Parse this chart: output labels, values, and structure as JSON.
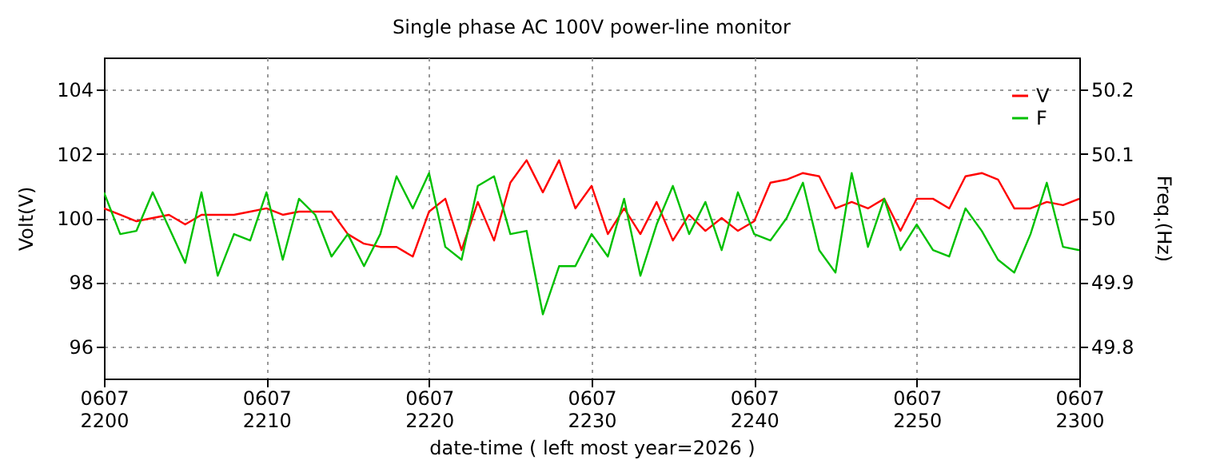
{
  "chart_data": {
    "type": "line",
    "title": "Single phase AC 100V power-line monitor",
    "xlabel": "date-time ( left most year=2026 )",
    "ylabel": "Volt(V)",
    "y2label": "Freq.(Hz)",
    "x": [
      "2026-06-07T22:00",
      "2026-06-07T22:01",
      "2026-06-07T22:02",
      "2026-06-07T22:03",
      "2026-06-07T22:04",
      "2026-06-07T22:05",
      "2026-06-07T22:06",
      "2026-06-07T22:07",
      "2026-06-07T22:08",
      "2026-06-07T22:09",
      "2026-06-07T22:10",
      "2026-06-07T22:11",
      "2026-06-07T22:12",
      "2026-06-07T22:13",
      "2026-06-07T22:14",
      "2026-06-07T22:15",
      "2026-06-07T22:16",
      "2026-06-07T22:17",
      "2026-06-07T22:18",
      "2026-06-07T22:19",
      "2026-06-07T22:20",
      "2026-06-07T22:21",
      "2026-06-07T22:22",
      "2026-06-07T22:23",
      "2026-06-07T22:24",
      "2026-06-07T22:25",
      "2026-06-07T22:26",
      "2026-06-07T22:27",
      "2026-06-07T22:28",
      "2026-06-07T22:29",
      "2026-06-07T22:30",
      "2026-06-07T22:31",
      "2026-06-07T22:32",
      "2026-06-07T22:33",
      "2026-06-07T22:34",
      "2026-06-07T22:35",
      "2026-06-07T22:36",
      "2026-06-07T22:37",
      "2026-06-07T22:38",
      "2026-06-07T22:39",
      "2026-06-07T22:40",
      "2026-06-07T22:41",
      "2026-06-07T22:42",
      "2026-06-07T22:43",
      "2026-06-07T22:44",
      "2026-06-07T22:45",
      "2026-06-07T22:46",
      "2026-06-07T22:47",
      "2026-06-07T22:48",
      "2026-06-07T22:49",
      "2026-06-07T22:50",
      "2026-06-07T22:51",
      "2026-06-07T22:52",
      "2026-06-07T22:53",
      "2026-06-07T22:54",
      "2026-06-07T22:55",
      "2026-06-07T22:56",
      "2026-06-07T22:57",
      "2026-06-07T22:58",
      "2026-06-07T22:59",
      "2026-06-07T23:00"
    ],
    "series": [
      {
        "name": "V",
        "color": "#ff0000",
        "values": [
          100.3,
          100.1,
          99.9,
          100.0,
          100.1,
          99.8,
          100.1,
          100.1,
          100.1,
          100.2,
          100.3,
          100.1,
          100.2,
          100.2,
          100.2,
          99.5,
          99.2,
          99.1,
          99.1,
          98.8,
          100.2,
          100.6,
          99.0,
          100.5,
          99.3,
          101.1,
          101.8,
          100.8,
          101.8,
          100.3,
          101.0,
          99.5,
          100.3,
          99.5,
          100.5,
          99.3,
          100.1,
          99.6,
          100.0,
          99.6,
          99.9,
          101.1,
          101.2,
          101.4,
          101.3,
          100.3,
          100.5,
          100.3,
          100.6,
          99.6,
          100.6,
          100.6,
          100.3,
          101.3,
          101.4,
          101.2,
          100.3,
          100.3,
          100.5,
          100.4,
          100.6
        ]
      },
      {
        "name": "F",
        "color": "#00c000",
        "axis": "y2",
        "values": [
          50.04,
          49.975,
          49.98,
          50.04,
          49.985,
          49.93,
          50.04,
          49.91,
          49.975,
          49.965,
          50.04,
          49.935,
          50.03,
          50.005,
          49.94,
          49.975,
          49.925,
          49.975,
          50.065,
          50.015,
          50.07,
          49.955,
          49.935,
          50.05,
          50.065,
          49.975,
          49.98,
          49.85,
          49.925,
          49.925,
          49.975,
          49.94,
          50.03,
          49.91,
          49.99,
          50.05,
          49.975,
          50.025,
          49.95,
          50.04,
          49.975,
          49.965,
          50.0,
          50.055,
          49.95,
          49.915,
          50.07,
          49.955,
          50.03,
          49.95,
          49.99,
          49.95,
          49.94,
          50.015,
          49.98,
          49.935,
          49.915,
          49.975,
          50.055,
          49.955,
          49.95
        ]
      }
    ],
    "xlim": [
      "2026-06-07T22:00",
      "2026-06-07T23:00"
    ],
    "xticks": [
      {
        "value": "2026-06-07T22:00",
        "label": "0607\n2200"
      },
      {
        "value": "2026-06-07T22:10",
        "label": "0607\n2210"
      },
      {
        "value": "2026-06-07T22:20",
        "label": "0607\n2220"
      },
      {
        "value": "2026-06-07T22:30",
        "label": "0607\n2230"
      },
      {
        "value": "2026-06-07T22:40",
        "label": "0607\n2240"
      },
      {
        "value": "2026-06-07T22:50",
        "label": "0607\n2250"
      },
      {
        "value": "2026-06-07T23:00",
        "label": "0607\n2300"
      }
    ],
    "ylim": [
      95,
      105
    ],
    "yticks": [
      96,
      98,
      100,
      102,
      104
    ],
    "y2lim": [
      49.75,
      50.25
    ],
    "y2ticks": [
      49.8,
      49.9,
      50,
      50.1,
      50.2
    ],
    "grid": true,
    "legend": "top right"
  }
}
